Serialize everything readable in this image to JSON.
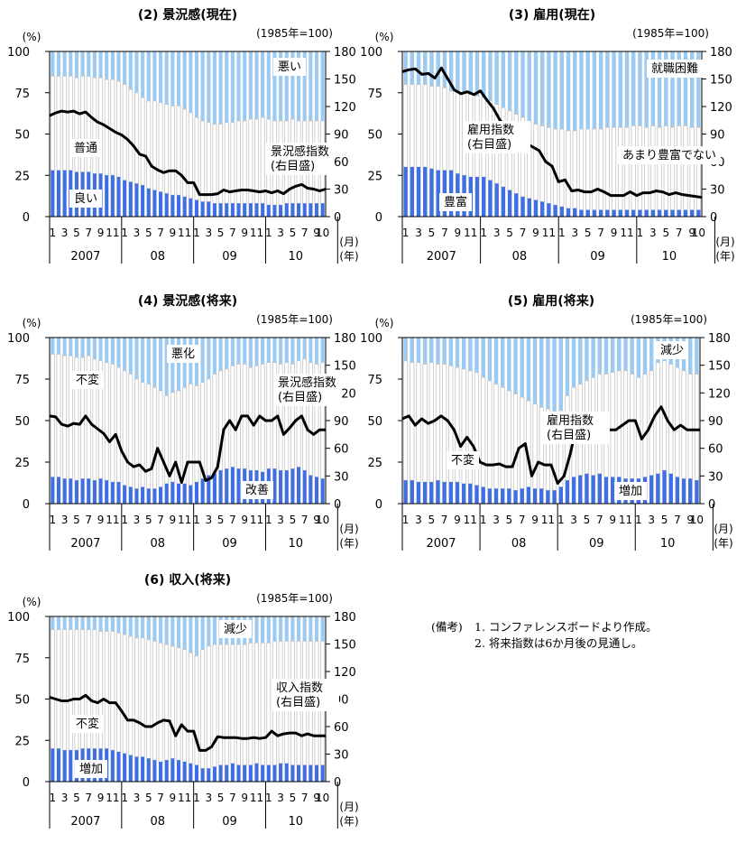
{
  "common": {
    "pct_label": "(%)",
    "index_label": "(1985年=100)",
    "left_ticks": [
      "0",
      "25",
      "50",
      "75",
      "100"
    ],
    "right_ticks": [
      "0",
      "30",
      "60",
      "90",
      "120",
      "150",
      "180"
    ],
    "month_ticks": [
      "1",
      "3",
      "5",
      "7",
      "9",
      "11",
      "1",
      "3",
      "5",
      "7",
      "9",
      "11",
      "1",
      "3",
      "5",
      "7",
      "9",
      "11",
      "1",
      "3",
      "5",
      "7",
      "9",
      "10"
    ],
    "years": [
      "2007",
      "08",
      "09",
      "10"
    ],
    "month_unit": "(月)",
    "year_unit": "(年)"
  },
  "colors": {
    "good": "#3f6fe0",
    "neutral": "#ffffff",
    "neutral_stroke": "#c4c4c4",
    "bad": "#9ccaf0",
    "index_line": "#000000"
  },
  "chart_data": [
    {
      "type": "bar",
      "title": "(2) 景況感(現在)",
      "xlabel": "(月)(年)",
      "ylabel": "(%)",
      "y2label": "(1985年=100)",
      "ylim": [
        0,
        100
      ],
      "y2lim": [
        0,
        180
      ],
      "legend": [
        "悪い",
        "普通",
        "良い",
        "景況感指数\n(右目盛)"
      ],
      "series": [
        {
          "name": "良い",
          "values": [
            28,
            28,
            28,
            28,
            27,
            27,
            27,
            26,
            26,
            25,
            25,
            24,
            22,
            21,
            20,
            19,
            17,
            16,
            15,
            14,
            13,
            13,
            12,
            11,
            10,
            9,
            9,
            8,
            8,
            8,
            8,
            8,
            8,
            8,
            8,
            8,
            7,
            7,
            7,
            8,
            8,
            8,
            8,
            8,
            8,
            8
          ]
        },
        {
          "name": "悪い",
          "values": [
            15,
            15,
            15,
            15,
            16,
            15,
            15,
            16,
            16,
            17,
            17,
            18,
            20,
            23,
            25,
            28,
            30,
            30,
            31,
            32,
            33,
            33,
            35,
            37,
            40,
            42,
            43,
            44,
            44,
            43,
            43,
            42,
            42,
            41,
            41,
            40,
            41,
            42,
            42,
            42,
            41,
            42,
            42,
            42,
            42,
            42
          ]
        },
        {
          "name": "景況感指数",
          "axis": "right",
          "values": [
            110,
            113,
            115,
            114,
            115,
            112,
            114,
            108,
            103,
            100,
            96,
            92,
            89,
            84,
            77,
            68,
            66,
            55,
            51,
            48,
            50,
            50,
            45,
            37,
            37,
            24,
            24,
            24,
            25,
            29,
            27,
            28,
            29,
            29,
            28,
            27,
            28,
            26,
            28,
            25,
            30,
            33,
            35,
            31,
            30,
            28,
            30
          ]
        }
      ]
    },
    {
      "type": "bar",
      "title": "(3) 雇用(現在)",
      "xlabel": "(月)(年)",
      "ylabel": "(%)",
      "y2label": "(1985年=100)",
      "ylim": [
        0,
        100
      ],
      "y2lim": [
        0,
        180
      ],
      "legend": [
        "就職困難",
        "あまり豊富でない",
        "雇用指数\n(右目盛)",
        "豊富"
      ],
      "series": [
        {
          "name": "豊富",
          "values": [
            30,
            30,
            30,
            30,
            29,
            28,
            28,
            28,
            26,
            25,
            24,
            24,
            24,
            22,
            20,
            18,
            16,
            14,
            12,
            11,
            10,
            9,
            8,
            7,
            6,
            5,
            5,
            4,
            4,
            4,
            4,
            4,
            4,
            4,
            4,
            4,
            4,
            4,
            4,
            4,
            4,
            4,
            4,
            4,
            4,
            4
          ]
        },
        {
          "name": "就職困難",
          "values": [
            20,
            20,
            20,
            20,
            21,
            21,
            22,
            24,
            24,
            25,
            26,
            27,
            28,
            30,
            32,
            34,
            36,
            38,
            40,
            42,
            44,
            45,
            46,
            47,
            47,
            48,
            48,
            47,
            47,
            47,
            47,
            46,
            46,
            46,
            46,
            45,
            45,
            46,
            45,
            46,
            45,
            46,
            45,
            45,
            46,
            46
          ]
        },
        {
          "name": "雇用指数",
          "axis": "right",
          "values": [
            158,
            160,
            161,
            155,
            156,
            151,
            162,
            150,
            138,
            134,
            136,
            133,
            137,
            127,
            118,
            105,
            97,
            85,
            80,
            80,
            76,
            72,
            60,
            55,
            38,
            40,
            28,
            29,
            27,
            27,
            30,
            27,
            23,
            23,
            23,
            27,
            23,
            26,
            26,
            28,
            27,
            24,
            26,
            24,
            23,
            22,
            21
          ]
        }
      ]
    },
    {
      "type": "bar",
      "title": "(4) 景況感(将来)",
      "xlabel": "(月)(年)",
      "ylabel": "(%)",
      "y2label": "(1985年=100)",
      "ylim": [
        0,
        100
      ],
      "y2lim": [
        0,
        180
      ],
      "legend": [
        "悪化",
        "不変",
        "景況感指数\n(右目盛)",
        "改善"
      ],
      "series": [
        {
          "name": "改善",
          "values": [
            16,
            16,
            15,
            15,
            14,
            15,
            15,
            14,
            15,
            14,
            13,
            13,
            11,
            10,
            9,
            10,
            9,
            9,
            10,
            12,
            13,
            12,
            12,
            11,
            13,
            15,
            17,
            18,
            20,
            21,
            22,
            21,
            21,
            20,
            20,
            19,
            21,
            21,
            20,
            20,
            21,
            22,
            20,
            17,
            16,
            15
          ]
        },
        {
          "name": "悪化",
          "values": [
            10,
            10,
            11,
            11,
            12,
            12,
            11,
            13,
            14,
            15,
            16,
            18,
            20,
            22,
            25,
            27,
            28,
            30,
            32,
            35,
            33,
            32,
            30,
            28,
            29,
            27,
            25,
            22,
            20,
            19,
            17,
            16,
            16,
            18,
            17,
            16,
            15,
            15,
            16,
            15,
            16,
            14,
            13,
            15,
            16,
            15
          ]
        },
        {
          "name": "景況感指数",
          "axis": "right",
          "values": [
            95,
            94,
            86,
            84,
            87,
            86,
            95,
            86,
            81,
            76,
            67,
            75,
            57,
            45,
            40,
            42,
            35,
            38,
            60,
            45,
            30,
            45,
            23,
            45,
            45,
            45,
            25,
            28,
            40,
            80,
            90,
            80,
            95,
            95,
            85,
            95,
            90,
            90,
            95,
            75,
            82,
            90,
            95,
            80,
            75,
            80,
            80
          ]
        }
      ]
    },
    {
      "type": "bar",
      "title": "(5) 雇用(将来)",
      "xlabel": "(月)(年)",
      "ylabel": "(%)",
      "y2label": "(1985年=100)",
      "ylim": [
        0,
        100
      ],
      "y2lim": [
        0,
        180
      ],
      "legend": [
        "減少",
        "雇用指数\n(右目盛)",
        "不変",
        "増加"
      ],
      "series": [
        {
          "name": "増加",
          "values": [
            14,
            14,
            13,
            13,
            13,
            14,
            13,
            13,
            13,
            12,
            12,
            11,
            10,
            9,
            9,
            9,
            9,
            8,
            9,
            10,
            9,
            9,
            8,
            8,
            10,
            14,
            16,
            17,
            18,
            17,
            18,
            16,
            16,
            16,
            15,
            15,
            15,
            16,
            17,
            18,
            20,
            18,
            16,
            15,
            15,
            14
          ]
        },
        {
          "name": "減少",
          "values": [
            14,
            15,
            15,
            16,
            15,
            16,
            16,
            17,
            18,
            19,
            20,
            21,
            24,
            26,
            28,
            30,
            32,
            34,
            36,
            38,
            40,
            42,
            43,
            45,
            44,
            35,
            30,
            28,
            26,
            24,
            22,
            22,
            21,
            20,
            20,
            22,
            24,
            22,
            20,
            15,
            14,
            16,
            18,
            20,
            22,
            22
          ]
        },
        {
          "name": "雇用指数",
          "axis": "right",
          "values": [
            92,
            95,
            85,
            92,
            87,
            90,
            95,
            90,
            80,
            62,
            72,
            62,
            45,
            42,
            42,
            43,
            40,
            40,
            60,
            65,
            30,
            45,
            42,
            42,
            22,
            30,
            55,
            88,
            80,
            75,
            90,
            90,
            80,
            80,
            85,
            90,
            90,
            70,
            80,
            95,
            105,
            90,
            80,
            85,
            80,
            80,
            80
          ]
        }
      ]
    },
    {
      "type": "bar",
      "title": "(6) 収入(将来)",
      "xlabel": "(月)(年)",
      "ylabel": "(%)",
      "y2label": "(1985年=100)",
      "ylim": [
        0,
        100
      ],
      "y2lim": [
        0,
        180
      ],
      "legend": [
        "減少",
        "収入指数\n(右目盛)",
        "不変",
        "増加"
      ],
      "series": [
        {
          "name": "増加",
          "values": [
            20,
            20,
            19,
            19,
            19,
            20,
            20,
            20,
            20,
            20,
            19,
            18,
            17,
            16,
            15,
            15,
            14,
            13,
            12,
            13,
            14,
            13,
            12,
            11,
            10,
            8,
            8,
            9,
            10,
            10,
            11,
            10,
            10,
            10,
            11,
            10,
            10,
            10,
            11,
            11,
            10,
            10,
            10,
            10,
            10,
            10
          ]
        },
        {
          "name": "減少",
          "values": [
            8,
            8,
            8,
            8,
            8,
            8,
            8,
            8,
            9,
            9,
            9,
            10,
            11,
            12,
            13,
            13,
            14,
            15,
            16,
            17,
            18,
            19,
            20,
            22,
            24,
            20,
            18,
            17,
            17,
            17,
            17,
            17,
            17,
            16,
            16,
            16,
            16,
            15,
            15,
            15,
            15,
            15,
            15,
            15,
            15,
            15
          ]
        },
        {
          "name": "収入指数",
          "axis": "right",
          "values": [
            92,
            90,
            88,
            88,
            90,
            90,
            94,
            88,
            86,
            90,
            86,
            86,
            77,
            67,
            67,
            64,
            60,
            60,
            64,
            67,
            66,
            50,
            62,
            55,
            55,
            34,
            34,
            38,
            49,
            48,
            48,
            48,
            47,
            47,
            48,
            47,
            48,
            55,
            50,
            52,
            53,
            53,
            50,
            52,
            50,
            50,
            50
          ]
        }
      ]
    }
  ],
  "notes": {
    "prefix": "(備考)",
    "items": [
      "1. コンファレンスボードより作成。",
      "2. 将来指数は6か月後の見通し。"
    ]
  }
}
